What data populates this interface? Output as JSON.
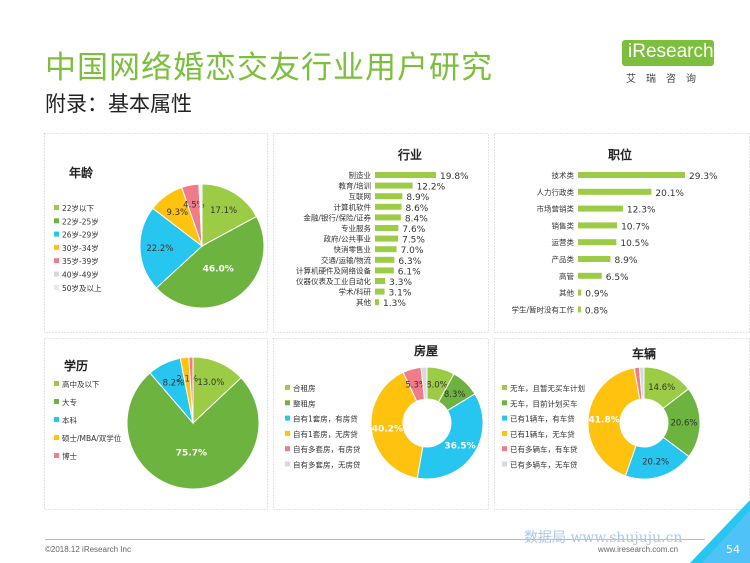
{
  "header": {
    "title": "中国网络婚恋交友行业用户研究",
    "subtitle": "附录：基本属性",
    "logo_text": "iResearch",
    "logo_sub": "艾瑞咨询"
  },
  "footer": {
    "copyright": "©2018.12 iResearch Inc",
    "website": "www.iresearch.com.cn",
    "watermark": "数据局 www.shujuju.cn",
    "page": "54"
  },
  "colors": {
    "green_light": "#9ccc45",
    "green_mid": "#6db33f",
    "cyan": "#26c6f0",
    "yellow": "#ffc20e",
    "pink": "#f07c8a",
    "grey": "#d9d9d9",
    "bar": "#9ccc45",
    "title": "#7cbf3c"
  },
  "chart_data": [
    {
      "type": "pie",
      "title": "年龄",
      "labels": [
        "22岁以下",
        "22岁-25岁",
        "26岁-29岁",
        "30岁-34岁",
        "35岁-39岁",
        "40岁-49岁",
        "50岁及以上"
      ],
      "values": [
        17.1,
        46.0,
        22.2,
        9.3,
        4.5,
        0.3,
        0.5
      ],
      "value_labels": [
        "17.1%",
        "46.0%",
        "22.2%",
        "9.3%",
        "4.5%",
        "",
        ""
      ],
      "legend": "left"
    },
    {
      "type": "bar",
      "orientation": "horizontal",
      "title": "行业",
      "categories": [
        "制造业",
        "教育/培训",
        "互联网",
        "计算机软件",
        "金融/银行/保险/证券",
        "专业服务",
        "政府/公共事业",
        "快消零售业",
        "交通/运输/物流",
        "计算机硬件及网络设备",
        "仪器仪表及工业自动化",
        "学术/科研",
        "其他"
      ],
      "values": [
        19.8,
        12.2,
        8.9,
        8.6,
        8.4,
        7.6,
        7.5,
        7.0,
        6.3,
        6.1,
        3.3,
        3.1,
        1.3
      ],
      "value_labels": [
        "19.8%",
        "12.2%",
        "8.9%",
        "8.6%",
        "8.4%",
        "7.6%",
        "7.5%",
        "7.0%",
        "6.3%",
        "6.1%",
        "3.3%",
        "3.1%",
        "1.3%"
      ]
    },
    {
      "type": "bar",
      "orientation": "horizontal",
      "title": "职位",
      "categories": [
        "技术类",
        "人力行政类",
        "市场营销类",
        "销售类",
        "运营类",
        "产品类",
        "高管",
        "其他",
        "学生/暂时没有工作"
      ],
      "values": [
        29.3,
        20.1,
        12.3,
        10.7,
        10.5,
        8.9,
        6.5,
        0.9,
        0.8
      ],
      "value_labels": [
        "29.3%",
        "20.1%",
        "12.3%",
        "10.7%",
        "10.5%",
        "8.9%",
        "6.5%",
        "0.9%",
        "0.8%"
      ]
    },
    {
      "type": "pie",
      "title": "学历",
      "labels": [
        "高中及以下",
        "大专",
        "本科",
        "硕士/MBA/双学位",
        "博士"
      ],
      "values": [
        13.0,
        75.7,
        8.2,
        2.1,
        1.0
      ],
      "legend_order": [
        "高中及以下",
        "大专",
        "本科",
        "硕士/MBA/双学位",
        "博士"
      ],
      "value_labels": [
        "13.0%",
        "75.7%",
        "8.2%",
        "2.1%",
        ""
      ],
      "legend": "left"
    },
    {
      "type": "pie",
      "subtype": "donut",
      "title": "房屋",
      "labels": [
        "合租房",
        "整租房",
        "自有1套房，有房贷",
        "自有1套房，无房贷",
        "自有多套房，有房贷",
        "自有多套房，无房贷"
      ],
      "values": [
        8.0,
        8.3,
        36.5,
        40.2,
        5.3,
        1.7
      ],
      "value_labels": [
        "8.0%",
        "8.3%",
        "36.5%",
        "40.2%",
        "5.3%",
        ""
      ],
      "legend": "left"
    },
    {
      "type": "pie",
      "subtype": "donut",
      "title": "车辆",
      "labels": [
        "无车，且暂无买车计划",
        "无车，目前计划买车",
        "已有1辆车，有车贷",
        "已有1辆车，无车贷",
        "已有多辆车，有车贷",
        "已有多辆车，无车贷"
      ],
      "values": [
        14.6,
        20.6,
        20.2,
        41.8,
        1.5,
        1.3
      ],
      "value_labels": [
        "14.6%",
        "20.6%",
        "20.2%",
        "41.8%",
        "",
        ""
      ],
      "legend": "left"
    }
  ]
}
